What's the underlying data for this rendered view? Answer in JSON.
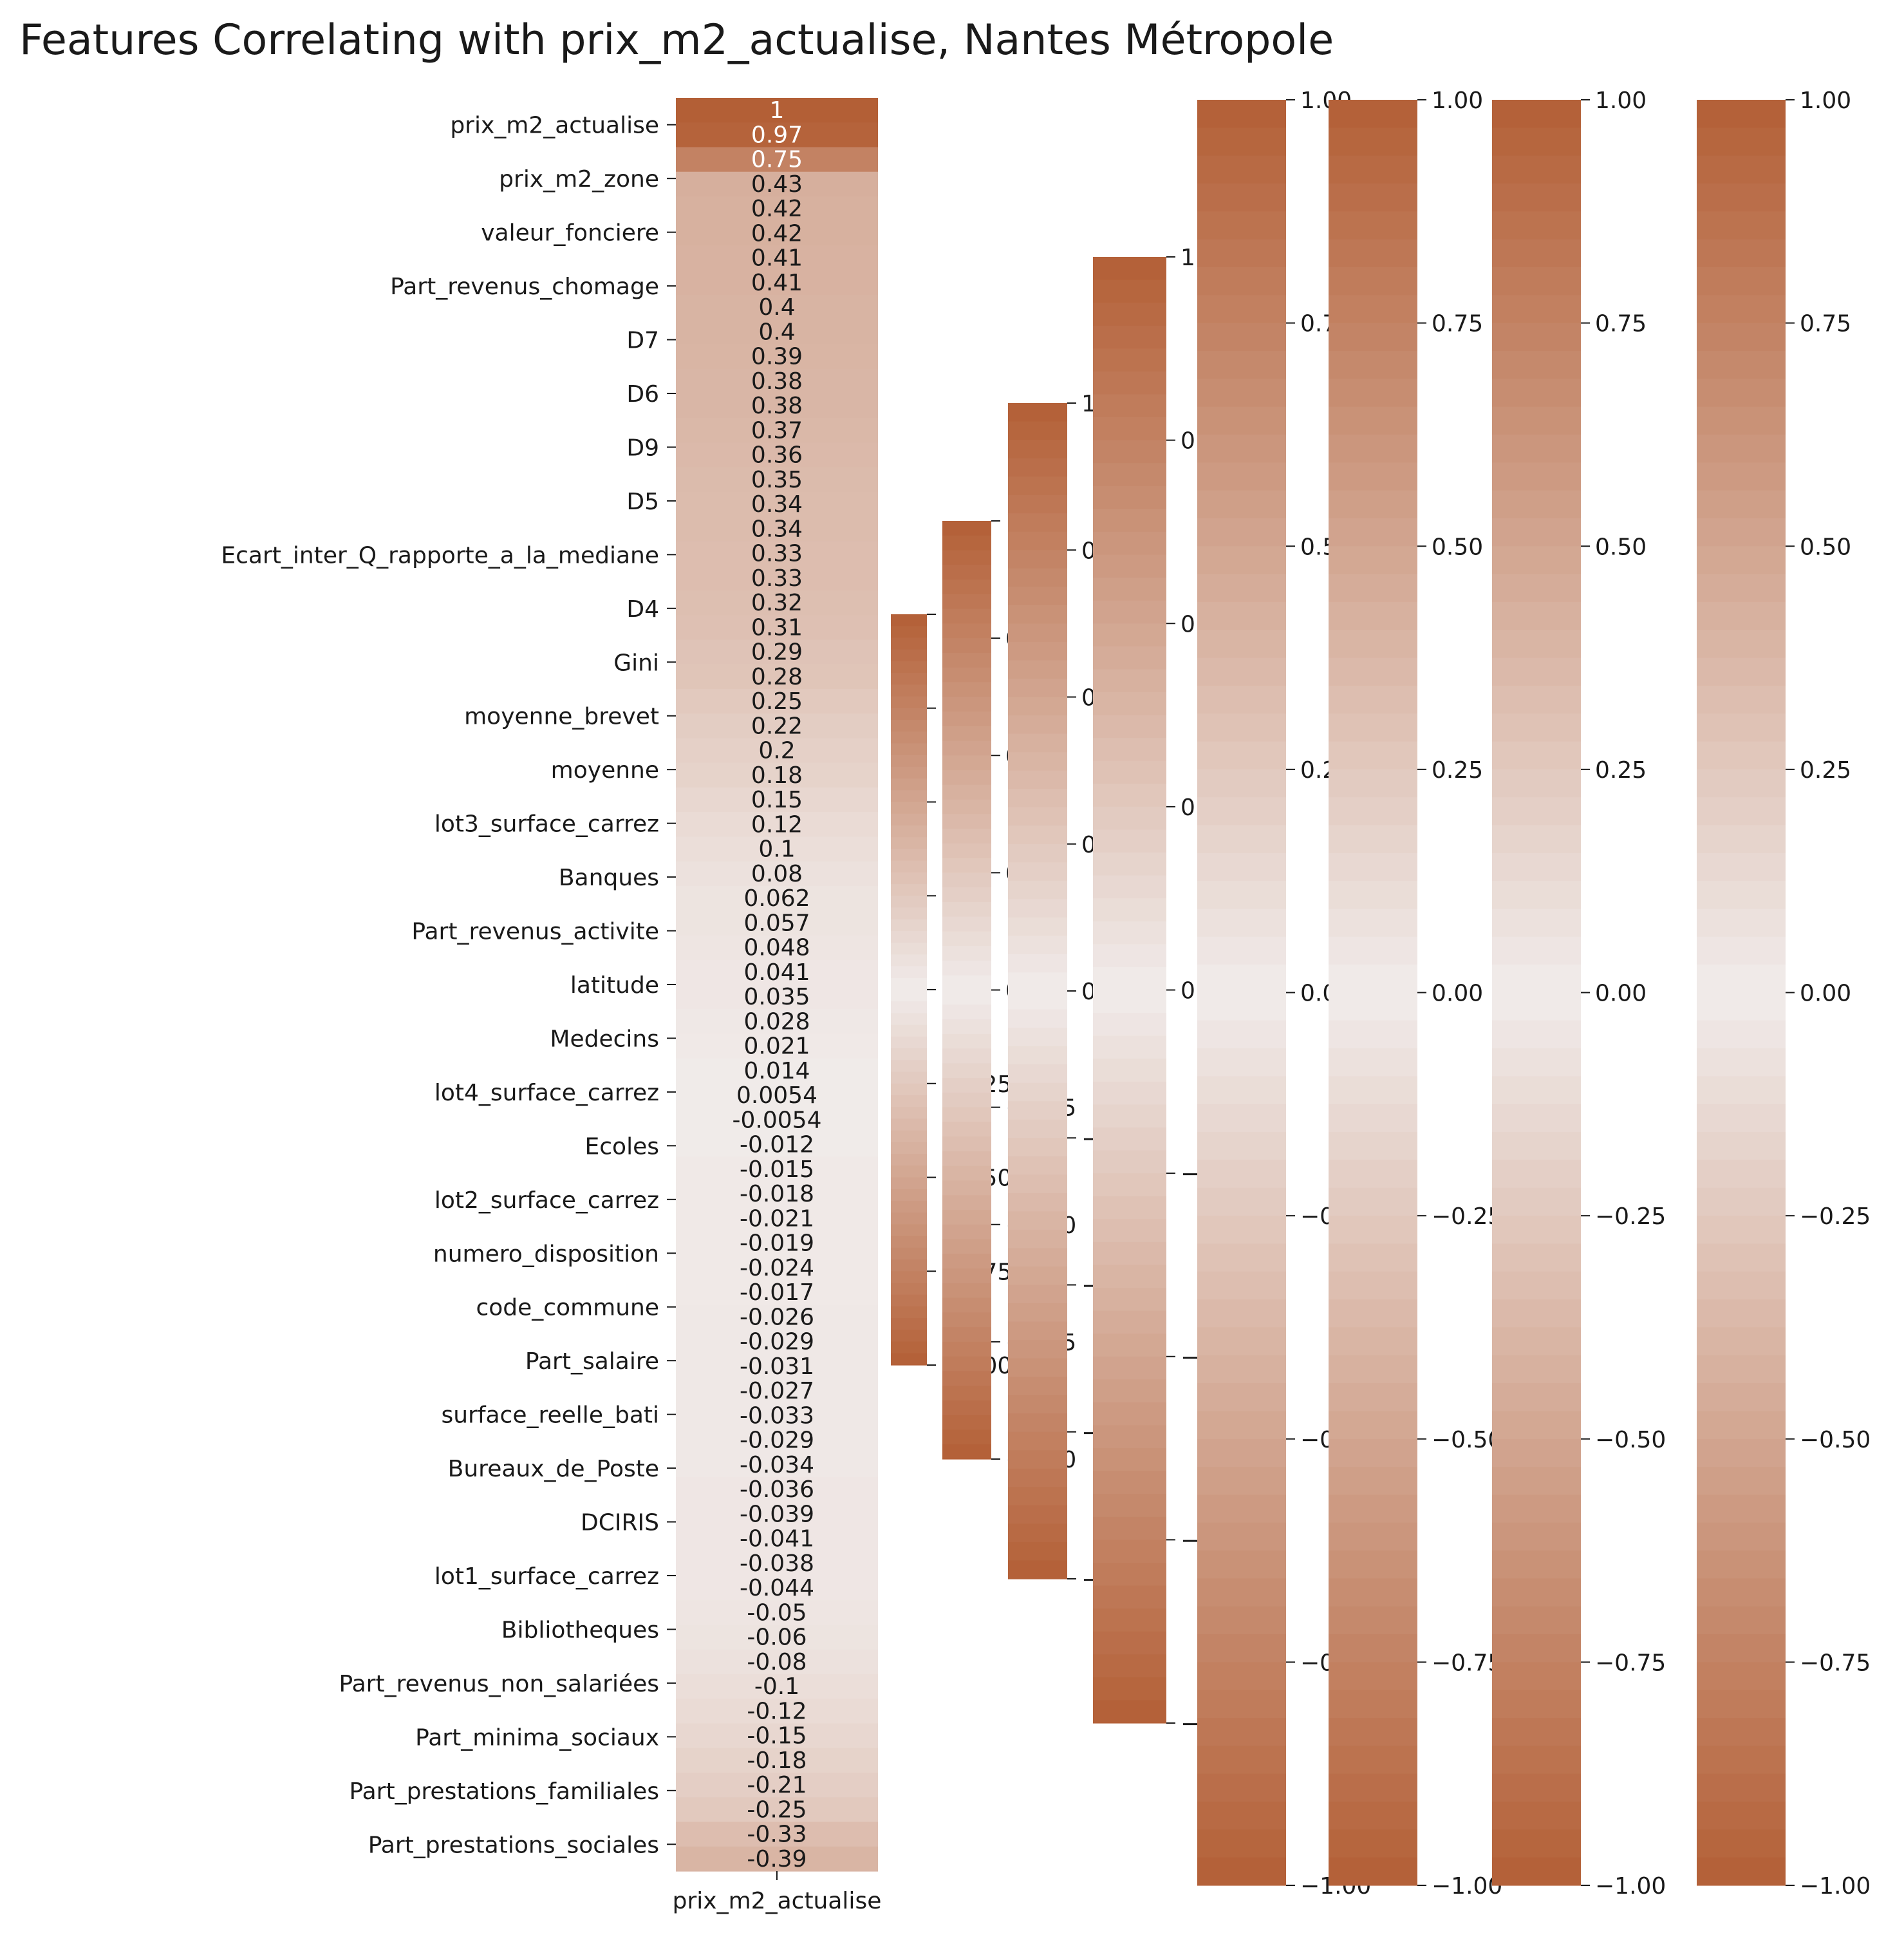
{
  "title": "Features Correlating with prix_m2_actualise, Nantes Métropole",
  "chart_data": {
    "type": "heatmap",
    "title": "Features Correlating with prix_m2_actualise, Nantes Métropole",
    "column": "prix_m2_actualise",
    "ytick_labels": [
      "prix_m2_actualise",
      "prix_m2_zone",
      "valeur_fonciere",
      "Part_revenus_chomage",
      "D7",
      "D6",
      "D9",
      "D5",
      "Ecart_inter_Q_rapporte_a_la_mediane",
      "D4",
      "Gini",
      "moyenne_brevet",
      "moyenne",
      "lot3_surface_carrez",
      "Banques",
      "Part_revenus_activite",
      "latitude",
      "Medecins",
      "lot4_surface_carrez",
      "Ecoles",
      "lot2_surface_carrez",
      "numero_disposition",
      "code_commune",
      "Part_salaire",
      "surface_reelle_bati",
      "Bureaux_de_Poste",
      "DCIRIS",
      "lot1_surface_carrez",
      "Bibliotheques",
      "Part_revenus_non_salariées",
      "Part_minima_sociaux",
      "Part_prestations_familiales",
      "Part_prestations_sociales"
    ],
    "row_values": [
      1,
      0.97,
      0.75,
      0.43,
      0.42,
      0.42,
      0.41,
      0.41,
      0.4,
      0.4,
      0.39,
      0.38,
      0.38,
      0.37,
      0.36,
      0.35,
      0.34,
      0.34,
      0.33,
      0.33,
      0.32,
      0.31,
      0.29,
      0.28,
      0.25,
      0.22,
      0.2,
      0.18,
      0.15,
      0.12,
      0.1,
      0.08,
      0.06,
      0.06,
      0.05,
      0.04,
      0.04,
      0.03,
      0.02,
      0.01,
      0.01,
      -0.01,
      -0.01,
      -0.02,
      -0.02,
      -0.02,
      -0.02,
      -0.02,
      -0.02,
      -0.03,
      -0.03,
      -0.03,
      -0.03,
      -0.03,
      -0.03,
      -0.03,
      -0.04,
      -0.04,
      -0.04,
      -0.04,
      -0.04,
      -0.05,
      -0.06,
      -0.08,
      -0.1,
      -0.12,
      -0.15,
      -0.18,
      -0.21,
      -0.25,
      -0.33,
      -0.39
    ],
    "cell_labels": [
      "1",
      "0.97",
      "0.75",
      "0.43",
      "0.42",
      "0.42",
      "0.41",
      "0.41",
      "0.4",
      "0.4",
      "0.39",
      "0.38",
      "0.38",
      "0.37",
      "0.36",
      "0.35",
      "0.34",
      "0.34",
      "0.33",
      "0.33",
      "0.32",
      "0.31",
      "0.29",
      "0.28",
      "0.25",
      "0.22",
      "0.2",
      "0.18",
      "0.15",
      "0.12",
      "0.1",
      "0.08",
      "0.062",
      "0.057",
      "0.048",
      "0.041",
      "0.035",
      "0.028",
      "0.021",
      "0.014",
      "0.0054",
      "-0.0054",
      "-0.012",
      "-0.015",
      "-0.018",
      "-0.021",
      "-0.019",
      "-0.024",
      "-0.017",
      "-0.026",
      "-0.029",
      "-0.031",
      "-0.027",
      "-0.033",
      "-0.029",
      "-0.034",
      "-0.036",
      "-0.039",
      "-0.041",
      "-0.038",
      "-0.044",
      "-0.05",
      "-0.06",
      "-0.08",
      "-0.1",
      "-0.12",
      "-0.15",
      "-0.18",
      "-0.21",
      "-0.25",
      "-0.33",
      "-0.39"
    ],
    "colorbars": [
      {
        "ticks": [
          "1.00",
          "0.75",
          "0.50",
          "0.25",
          "0.00",
          "−0.25",
          "−0.50",
          "−0.75",
          "−1.00"
        ]
      },
      {
        "ticks": [
          "1.00",
          "0.75",
          "0.50",
          "0.25",
          "0.00",
          "−0.25",
          "−0.50",
          "−0.75",
          "−1.00"
        ]
      },
      {
        "ticks": [
          "1.00",
          "0.75",
          "0.50",
          "0.25",
          "0.00",
          "−0.25",
          "−0.50",
          "−0.75",
          "−1.00"
        ]
      },
      {
        "ticks": [
          "1.00",
          "0.75",
          "0.50",
          "0.25",
          "0.00",
          "−0.25",
          "−0.50",
          "−0.75",
          "−1.00"
        ]
      },
      {
        "ticks": [
          "1.00",
          "0.75",
          "0.50",
          "0.25",
          "0.00",
          "−0.25",
          "−0.50",
          "−0.75",
          "−1.00"
        ]
      },
      {
        "ticks": [
          "1.00",
          "0.75",
          "0.50",
          "0.25",
          "0.00",
          "−0.25",
          "−0.50",
          "−0.75",
          "−1.00"
        ]
      },
      {
        "ticks": [
          "1.00",
          "0.75",
          "0.50",
          "0.25",
          "0.00",
          "−0.25",
          "−0.50",
          "−0.75",
          "−1.00"
        ]
      },
      {
        "ticks": [
          "1.00",
          "0.75",
          "0.50",
          "0.25",
          "0.00",
          "−0.25",
          "−0.50",
          "−0.75",
          "−1.00"
        ]
      }
    ],
    "vmin": -1,
    "vmax": 1,
    "colormap": {
      "extreme": "#b35f36",
      "center": "#f1eceb"
    }
  }
}
